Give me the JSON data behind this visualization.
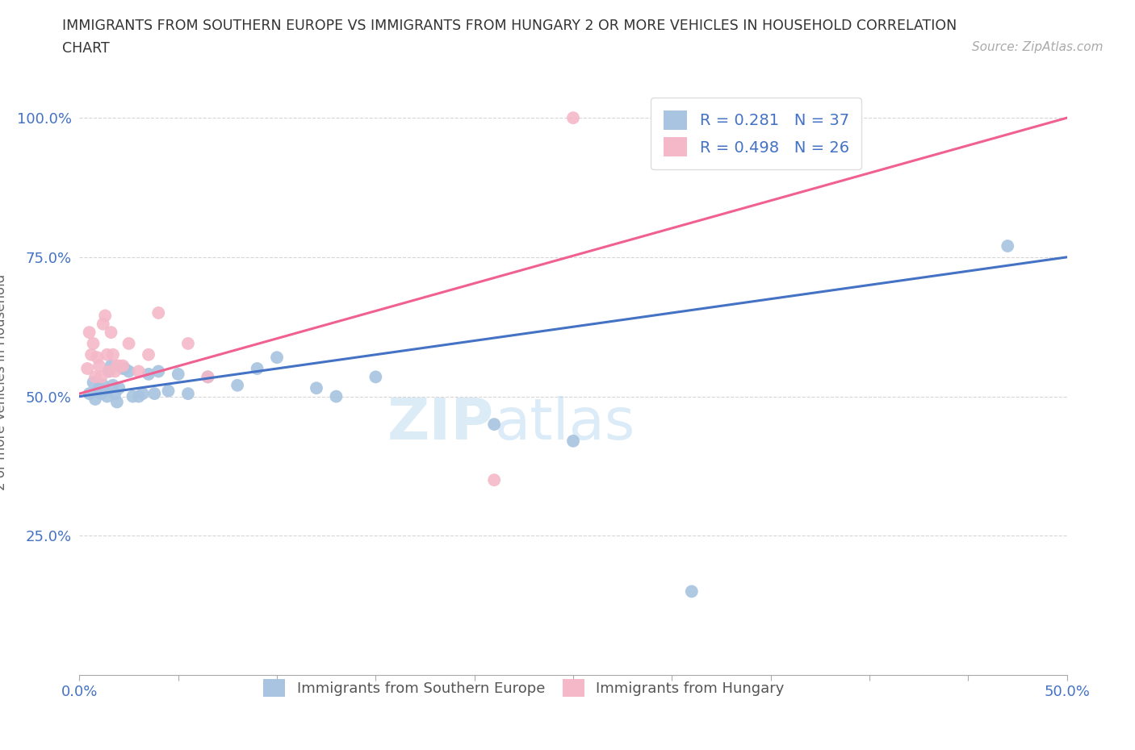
{
  "title_line1": "IMMIGRANTS FROM SOUTHERN EUROPE VS IMMIGRANTS FROM HUNGARY 2 OR MORE VEHICLES IN HOUSEHOLD CORRELATION",
  "title_line2": "CHART",
  "source": "Source: ZipAtlas.com",
  "ylabel": "2 or more Vehicles in Household",
  "xlim": [
    0,
    0.5
  ],
  "ylim": [
    0,
    1.05
  ],
  "xticks": [
    0.0,
    0.05,
    0.1,
    0.15,
    0.2,
    0.25,
    0.3,
    0.35,
    0.4,
    0.45,
    0.5
  ],
  "yticks": [
    0.0,
    0.25,
    0.5,
    0.75,
    1.0
  ],
  "xticklabels_show": {
    "0.0": "0.0%",
    "0.50": "50.0%"
  },
  "yticklabels_show": {
    "0.25": "25.0%",
    "0.50": "50.0%",
    "0.75": "75.0%",
    "1.00": "100.0%"
  },
  "blue_R": 0.281,
  "blue_N": 37,
  "pink_R": 0.498,
  "pink_N": 26,
  "blue_color": "#a8c4e0",
  "pink_color": "#f4b8c8",
  "blue_line_color": "#4472c4",
  "pink_line_color": "#f06090",
  "legend_label_blue": "Immigrants from Southern Europe",
  "legend_label_pink": "Immigrants from Hungary",
  "watermark_zip": "ZIP",
  "watermark_atlas": "atlas",
  "blue_x": [
    0.005,
    0.007,
    0.008,
    0.01,
    0.011,
    0.012,
    0.013,
    0.014,
    0.015,
    0.016,
    0.017,
    0.018,
    0.019,
    0.02,
    0.022,
    0.023,
    0.025,
    0.027,
    0.03,
    0.032,
    0.035,
    0.038,
    0.04,
    0.045,
    0.05,
    0.055,
    0.065,
    0.08,
    0.09,
    0.1,
    0.12,
    0.13,
    0.15,
    0.21,
    0.25,
    0.31,
    0.47
  ],
  "blue_y": [
    0.505,
    0.525,
    0.495,
    0.515,
    0.505,
    0.52,
    0.51,
    0.5,
    0.545,
    0.555,
    0.52,
    0.505,
    0.49,
    0.515,
    0.55,
    0.55,
    0.545,
    0.5,
    0.5,
    0.505,
    0.54,
    0.505,
    0.545,
    0.51,
    0.54,
    0.505,
    0.535,
    0.52,
    0.55,
    0.57,
    0.515,
    0.5,
    0.535,
    0.45,
    0.42,
    0.15,
    0.77
  ],
  "pink_x": [
    0.004,
    0.005,
    0.006,
    0.007,
    0.008,
    0.009,
    0.01,
    0.011,
    0.012,
    0.013,
    0.014,
    0.015,
    0.016,
    0.017,
    0.018,
    0.019,
    0.02,
    0.022,
    0.025,
    0.03,
    0.035,
    0.04,
    0.055,
    0.065,
    0.21,
    0.25
  ],
  "pink_y": [
    0.55,
    0.615,
    0.575,
    0.595,
    0.535,
    0.57,
    0.555,
    0.535,
    0.63,
    0.645,
    0.575,
    0.545,
    0.615,
    0.575,
    0.545,
    0.555,
    0.555,
    0.555,
    0.595,
    0.545,
    0.575,
    0.65,
    0.595,
    0.535,
    0.35,
    1.0
  ],
  "blue_trend_x0": 0.0,
  "blue_trend_y0": 0.5,
  "blue_trend_x1": 0.5,
  "blue_trend_y1": 0.75,
  "pink_trend_x0": 0.0,
  "pink_trend_y0": 0.505,
  "pink_trend_x1": 0.5,
  "pink_trend_y1": 1.0
}
